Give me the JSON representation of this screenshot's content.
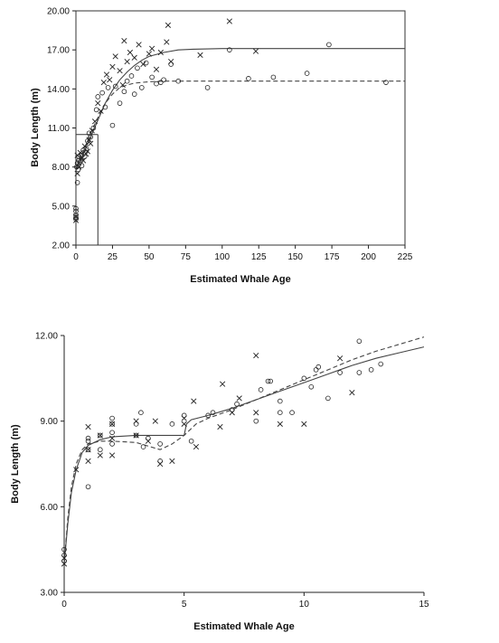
{
  "chart_data": [
    {
      "type": "scatter",
      "title": "",
      "xlabel": "Estimated Whale Age",
      "ylabel": "Body Length (m)",
      "xlim": [
        0,
        225
      ],
      "ylim": [
        2,
        20
      ],
      "x_ticks": [
        "0",
        "25",
        "50",
        "75",
        "100",
        "125",
        "150",
        "175",
        "200",
        "225"
      ],
      "y_ticks": [
        "2.00",
        "5.00",
        "8.00",
        "11.00",
        "14.00",
        "17.00",
        "20.00"
      ],
      "grid": false,
      "reference_lines": [
        {
          "x": [
            0,
            15
          ],
          "y": [
            10.5,
            10.5
          ]
        },
        {
          "x": [
            15,
            15
          ],
          "y": [
            2,
            10.5
          ]
        }
      ],
      "series": [
        {
          "marker": "circle",
          "points": [
            [
              0,
              4.0
            ],
            [
              0,
              4.3
            ],
            [
              0,
              4.6
            ],
            [
              0,
              4.8
            ],
            [
              0,
              4.1
            ],
            [
              0.5,
              8.0
            ],
            [
              1,
              8.3
            ],
            [
              1,
              6.8
            ],
            [
              1.5,
              7.8
            ],
            [
              2,
              8.5
            ],
            [
              2,
              8.8
            ],
            [
              3,
              8.4
            ],
            [
              4,
              8.9
            ],
            [
              4,
              8.1
            ],
            [
              5,
              9.3
            ],
            [
              6,
              8.8
            ],
            [
              7,
              9.4
            ],
            [
              8,
              10.0
            ],
            [
              9,
              10.6
            ],
            [
              10,
              10.3
            ],
            [
              12,
              11.0
            ],
            [
              14,
              12.4
            ],
            [
              15,
              13.4
            ],
            [
              18,
              13.7
            ],
            [
              20,
              12.6
            ],
            [
              22,
              14.1
            ],
            [
              25,
              11.2
            ],
            [
              27,
              14.2
            ],
            [
              30,
              12.9
            ],
            [
              33,
              13.8
            ],
            [
              35,
              14.6
            ],
            [
              38,
              15.0
            ],
            [
              40,
              13.6
            ],
            [
              42,
              15.6
            ],
            [
              45,
              14.1
            ],
            [
              48,
              16.0
            ],
            [
              52,
              14.9
            ],
            [
              55,
              14.4
            ],
            [
              58,
              14.5
            ],
            [
              60,
              14.7
            ],
            [
              65,
              15.9
            ],
            [
              70,
              14.6
            ],
            [
              90,
              14.1
            ],
            [
              105,
              17.0
            ],
            [
              118,
              14.8
            ],
            [
              135,
              14.9
            ],
            [
              158,
              15.2
            ],
            [
              173,
              17.4
            ],
            [
              212,
              14.5
            ]
          ]
        },
        {
          "marker": "x",
          "points": [
            [
              0,
              3.9
            ],
            [
              0,
              4.2
            ],
            [
              1,
              7.5
            ],
            [
              1,
              8.9
            ],
            [
              2,
              8.0
            ],
            [
              3,
              9.1
            ],
            [
              4,
              8.7
            ],
            [
              5,
              8.5
            ],
            [
              6,
              9.6
            ],
            [
              7,
              9.0
            ],
            [
              8,
              9.2
            ],
            [
              9,
              10.1
            ],
            [
              10,
              9.8
            ],
            [
              11,
              10.8
            ],
            [
              13,
              11.5
            ],
            [
              15,
              12.9
            ],
            [
              17,
              12.3
            ],
            [
              19,
              14.5
            ],
            [
              21,
              15.1
            ],
            [
              23,
              14.7
            ],
            [
              25,
              15.7
            ],
            [
              27,
              16.5
            ],
            [
              30,
              15.4
            ],
            [
              32,
              14.3
            ],
            [
              33,
              17.7
            ],
            [
              35,
              16.1
            ],
            [
              37,
              16.8
            ],
            [
              40,
              16.4
            ],
            [
              43,
              17.4
            ],
            [
              46,
              15.9
            ],
            [
              50,
              16.7
            ],
            [
              52,
              17.1
            ],
            [
              55,
              15.5
            ],
            [
              58,
              16.8
            ],
            [
              62,
              17.6
            ],
            [
              63,
              18.9
            ],
            [
              65,
              16.1
            ],
            [
              85,
              16.6
            ],
            [
              105,
              19.2
            ],
            [
              123,
              16.9
            ]
          ]
        }
      ],
      "fitted_curves": [
        {
          "style": "solid",
          "points": [
            [
              0,
              7.8
            ],
            [
              2,
              8.3
            ],
            [
              5,
              9.0
            ],
            [
              10,
              10.3
            ],
            [
              15,
              11.6
            ],
            [
              20,
              12.9
            ],
            [
              25,
              13.9
            ],
            [
              30,
              14.7
            ],
            [
              35,
              15.3
            ],
            [
              40,
              15.8
            ],
            [
              45,
              16.2
            ],
            [
              50,
              16.5
            ],
            [
              60,
              16.8
            ],
            [
              70,
              17.0
            ],
            [
              80,
              17.05
            ],
            [
              100,
              17.1
            ],
            [
              150,
              17.1
            ],
            [
              200,
              17.1
            ],
            [
              225,
              17.1
            ]
          ]
        },
        {
          "style": "dashed",
          "points": [
            [
              0,
              8.0
            ],
            [
              2,
              8.4
            ],
            [
              5,
              9.2
            ],
            [
              10,
              10.6
            ],
            [
              15,
              11.8
            ],
            [
              20,
              12.9
            ],
            [
              25,
              13.6
            ],
            [
              30,
              14.1
            ],
            [
              35,
              14.3
            ],
            [
              40,
              14.45
            ],
            [
              50,
              14.55
            ],
            [
              60,
              14.6
            ],
            [
              75,
              14.6
            ],
            [
              100,
              14.6
            ],
            [
              150,
              14.6
            ],
            [
              200,
              14.6
            ],
            [
              225,
              14.6
            ]
          ]
        }
      ]
    },
    {
      "type": "scatter",
      "title": "",
      "xlabel": "Estimated Whale Age",
      "ylabel": "Body Length (m)",
      "xlim": [
        0,
        15
      ],
      "ylim": [
        3,
        12
      ],
      "x_ticks": [
        "0",
        "5",
        "10",
        "15"
      ],
      "y_ticks": [
        "3.00",
        "6.00",
        "9.00",
        "12.00"
      ],
      "grid": false,
      "series": [
        {
          "marker": "circle",
          "points": [
            [
              0,
              4.5
            ],
            [
              0,
              4.3
            ],
            [
              0,
              4.1
            ],
            [
              1,
              8.3
            ],
            [
              1,
              8.0
            ],
            [
              1,
              6.7
            ],
            [
              1,
              8.4
            ],
            [
              1.5,
              8.5
            ],
            [
              1.5,
              8.0
            ],
            [
              2,
              8.6
            ],
            [
              2,
              8.9
            ],
            [
              2,
              9.1
            ],
            [
              2,
              8.2
            ],
            [
              3,
              8.9
            ],
            [
              3,
              8.5
            ],
            [
              3.2,
              9.3
            ],
            [
              3.3,
              8.1
            ],
            [
              3.5,
              8.4
            ],
            [
              4,
              8.2
            ],
            [
              4,
              7.6
            ],
            [
              4.5,
              8.9
            ],
            [
              5,
              9.2
            ],
            [
              5.3,
              8.3
            ],
            [
              6,
              9.2
            ],
            [
              6.2,
              9.3
            ],
            [
              7,
              9.4
            ],
            [
              7.2,
              9.6
            ],
            [
              8,
              9.0
            ],
            [
              8.2,
              10.1
            ],
            [
              8.5,
              10.4
            ],
            [
              8.6,
              10.4
            ],
            [
              9,
              9.7
            ],
            [
              9,
              9.3
            ],
            [
              9.5,
              9.3
            ],
            [
              10,
              10.5
            ],
            [
              10.3,
              10.2
            ],
            [
              10.5,
              10.8
            ],
            [
              10.6,
              10.9
            ],
            [
              11,
              9.8
            ],
            [
              11.5,
              10.7
            ],
            [
              12.3,
              10.7
            ],
            [
              12.3,
              11.8
            ],
            [
              12.8,
              10.8
            ],
            [
              13.2,
              11.0
            ]
          ]
        },
        {
          "marker": "x",
          "points": [
            [
              0,
              4.0
            ],
            [
              0,
              4.2
            ],
            [
              0.5,
              7.3
            ],
            [
              1,
              8.8
            ],
            [
              1,
              7.6
            ],
            [
              1,
              8.0
            ],
            [
              1.5,
              7.8
            ],
            [
              1.5,
              8.5
            ],
            [
              2,
              7.8
            ],
            [
              2,
              8.9
            ],
            [
              2,
              8.4
            ],
            [
              3,
              9.0
            ],
            [
              3,
              8.5
            ],
            [
              3.5,
              8.3
            ],
            [
              3.8,
              9.0
            ],
            [
              4,
              7.5
            ],
            [
              4.5,
              7.6
            ],
            [
              5,
              9.1
            ],
            [
              5,
              8.9
            ],
            [
              5.5,
              8.1
            ],
            [
              5.4,
              9.7
            ],
            [
              6.5,
              8.8
            ],
            [
              6.6,
              10.3
            ],
            [
              7,
              9.3
            ],
            [
              7.3,
              9.8
            ],
            [
              8,
              11.3
            ],
            [
              8,
              9.3
            ],
            [
              9,
              8.9
            ],
            [
              10,
              8.9
            ],
            [
              11.5,
              11.2
            ],
            [
              12,
              10.0
            ]
          ]
        }
      ],
      "fitted_curves": [
        {
          "style": "solid",
          "points": [
            [
              0,
              4.0
            ],
            [
              0.15,
              5.4
            ],
            [
              0.3,
              6.5
            ],
            [
              0.5,
              7.3
            ],
            [
              0.75,
              7.9
            ],
            [
              1,
              8.15
            ],
            [
              1.5,
              8.35
            ],
            [
              2,
              8.45
            ],
            [
              3,
              8.5
            ],
            [
              4,
              8.5
            ],
            [
              5,
              8.5
            ],
            [
              5.1,
              8.9
            ],
            [
              5.3,
              9.05
            ],
            [
              6,
              9.2
            ],
            [
              7,
              9.45
            ],
            [
              8,
              9.75
            ],
            [
              9,
              10.05
            ],
            [
              10,
              10.35
            ],
            [
              11,
              10.65
            ],
            [
              12,
              10.95
            ],
            [
              13,
              11.2
            ],
            [
              14,
              11.4
            ],
            [
              15,
              11.6
            ]
          ]
        },
        {
          "style": "dashed",
          "points": [
            [
              0,
              4.0
            ],
            [
              0.15,
              5.6
            ],
            [
              0.3,
              6.7
            ],
            [
              0.5,
              7.5
            ],
            [
              0.75,
              8.0
            ],
            [
              1,
              8.2
            ],
            [
              1.5,
              8.3
            ],
            [
              2,
              8.3
            ],
            [
              3,
              8.25
            ],
            [
              4,
              8.0
            ],
            [
              4.5,
              8.2
            ],
            [
              5,
              8.5
            ],
            [
              5.5,
              8.9
            ],
            [
              6,
              9.1
            ],
            [
              7,
              9.4
            ],
            [
              8,
              9.75
            ],
            [
              9,
              10.1
            ],
            [
              10,
              10.45
            ],
            [
              11,
              10.8
            ],
            [
              12,
              11.15
            ],
            [
              13,
              11.45
            ],
            [
              14,
              11.7
            ],
            [
              15,
              11.95
            ]
          ]
        }
      ]
    }
  ]
}
